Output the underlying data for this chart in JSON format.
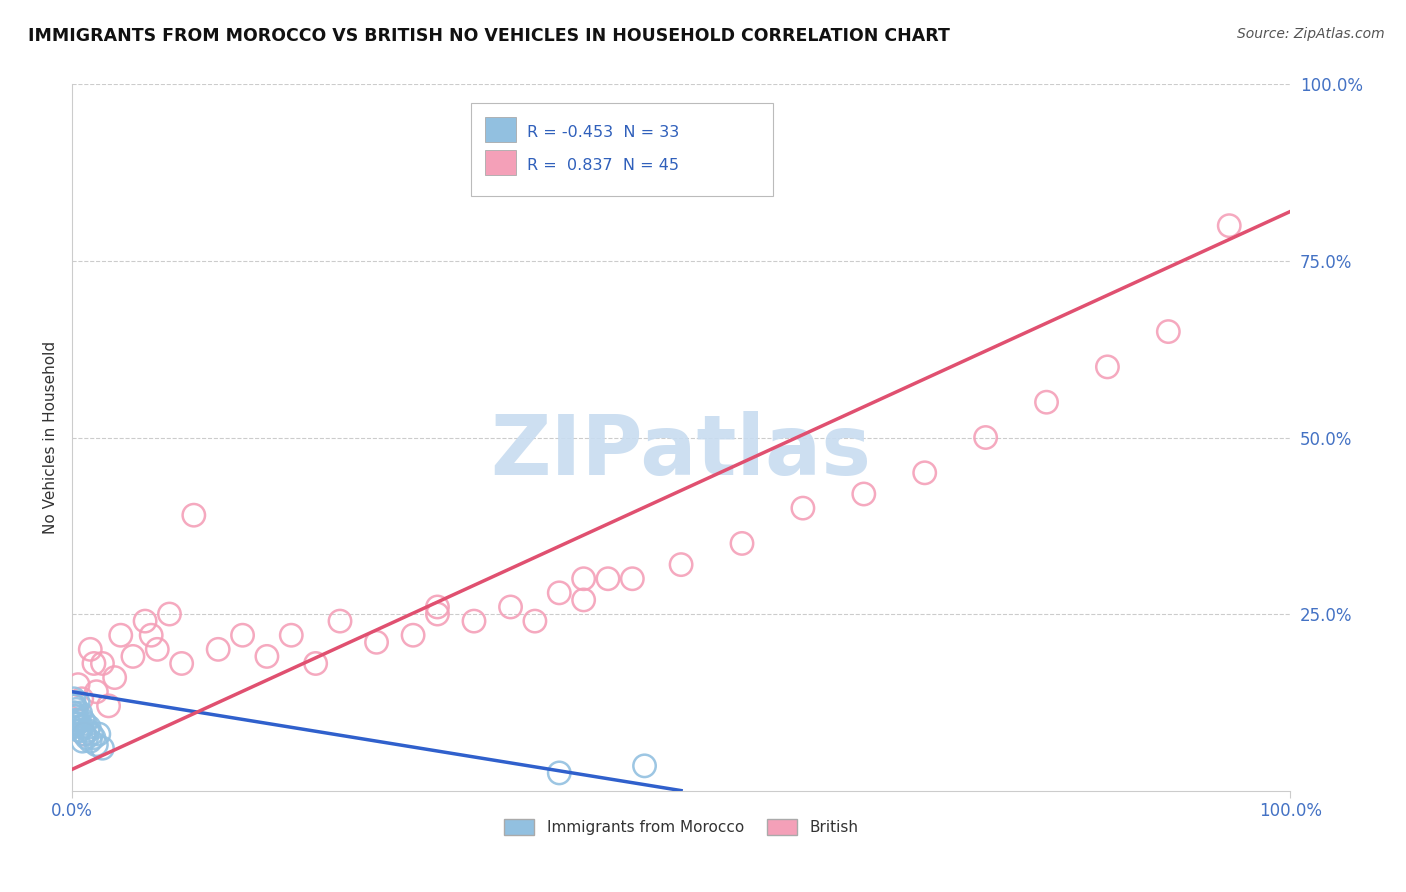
{
  "title": "IMMIGRANTS FROM MOROCCO VS BRITISH NO VEHICLES IN HOUSEHOLD CORRELATION CHART",
  "source": "Source: ZipAtlas.com",
  "ylabel": "No Vehicles in Household",
  "R1": -0.453,
  "N1": 33,
  "R2": 0.837,
  "N2": 45,
  "color_blue": "#92C0E0",
  "color_pink": "#F4A0B8",
  "line_blue": "#3060CC",
  "line_pink": "#E05070",
  "watermark_color": "#C8DCF0",
  "background_color": "#FFFFFF",
  "grid_color": "#CCCCCC",
  "tick_color": "#4472C4",
  "legend_label1": "Immigrants from Morocco",
  "legend_label2": "British",
  "blue_scatter_x": [
    0.05,
    0.1,
    0.15,
    0.2,
    0.25,
    0.3,
    0.35,
    0.4,
    0.5,
    0.6,
    0.7,
    0.8,
    0.9,
    1.0,
    1.1,
    1.2,
    1.3,
    1.4,
    1.5,
    1.6,
    1.8,
    2.0,
    2.2,
    2.5,
    0.12,
    0.22,
    0.32,
    0.45,
    0.55,
    0.65,
    0.85,
    40.0,
    47.0
  ],
  "blue_scatter_y": [
    9.0,
    11.0,
    13.0,
    10.5,
    12.0,
    9.5,
    11.5,
    10.0,
    12.5,
    8.5,
    11.0,
    9.0,
    10.0,
    8.0,
    9.5,
    7.5,
    8.5,
    9.0,
    7.0,
    8.0,
    7.5,
    6.5,
    8.0,
    6.0,
    12.0,
    11.0,
    10.5,
    9.5,
    10.0,
    8.5,
    7.0,
    2.5,
    3.5
  ],
  "pink_scatter_x": [
    0.5,
    1.0,
    1.5,
    2.0,
    2.5,
    3.0,
    4.0,
    5.0,
    6.0,
    7.0,
    8.0,
    9.0,
    10.0,
    12.0,
    14.0,
    16.0,
    18.0,
    20.0,
    22.0,
    25.0,
    28.0,
    30.0,
    33.0,
    36.0,
    38.0,
    40.0,
    42.0,
    44.0,
    46.0,
    50.0,
    55.0,
    60.0,
    65.0,
    70.0,
    75.0,
    80.0,
    85.0,
    90.0,
    95.0,
    0.8,
    1.8,
    3.5,
    6.5,
    42.0,
    30.0
  ],
  "pink_scatter_y": [
    15.0,
    8.0,
    20.0,
    14.0,
    18.0,
    12.0,
    22.0,
    19.0,
    24.0,
    20.0,
    25.0,
    18.0,
    39.0,
    20.0,
    22.0,
    19.0,
    22.0,
    18.0,
    24.0,
    21.0,
    22.0,
    25.0,
    24.0,
    26.0,
    24.0,
    28.0,
    27.0,
    30.0,
    30.0,
    32.0,
    35.0,
    40.0,
    42.0,
    45.0,
    50.0,
    55.0,
    60.0,
    65.0,
    80.0,
    13.0,
    18.0,
    16.0,
    22.0,
    30.0,
    26.0
  ],
  "blue_line": [
    [
      0,
      14
    ],
    [
      50,
      0
    ]
  ],
  "pink_line": [
    [
      0,
      3
    ],
    [
      100,
      82
    ]
  ]
}
